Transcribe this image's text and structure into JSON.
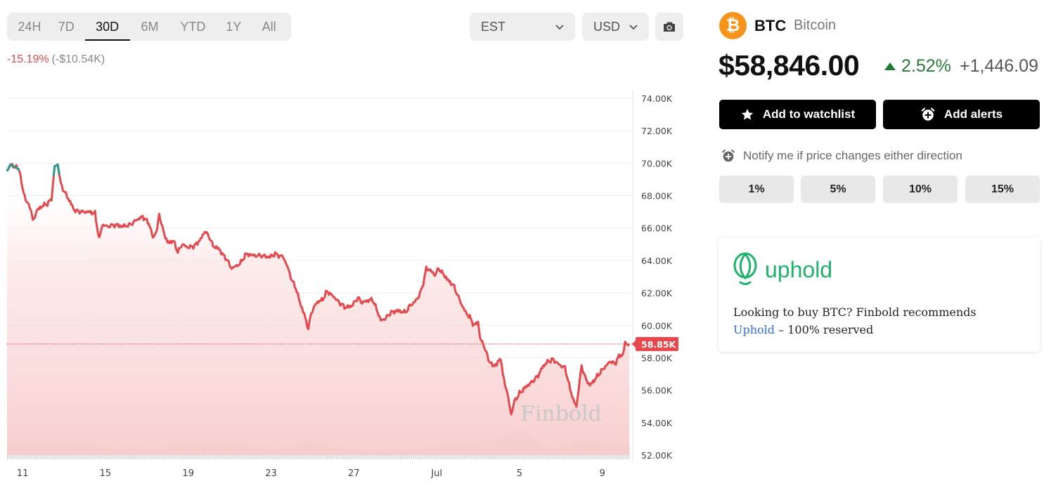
{
  "periods": [
    "24H",
    "7D",
    "30D",
    "6M",
    "YTD",
    "1Y",
    "All"
  ],
  "active_period": "30D",
  "timezone": "EST",
  "currency": "USD",
  "change_pct": "-15.19%",
  "change_abs": "(-$10.54K)",
  "coin": {
    "symbol": "BTC",
    "name": "Bitcoin",
    "logo_glyph": "₿"
  },
  "price": "$58,846.00",
  "price_change_pct": "2.52%",
  "price_change_abs": "+1,446.09",
  "actions": {
    "watchlist": "Add to watchlist",
    "alerts": "Add alerts"
  },
  "notify_text": "Notify me if price changes either direction",
  "alert_options": [
    "1%",
    "5%",
    "10%",
    "15%"
  ],
  "promo": {
    "brand": "uphold",
    "line1": "Looking to buy BTC? Finbold recommends",
    "link": "Uphold",
    "line2_rest": "– 100% reserved"
  },
  "colors": {
    "down": "#e5484d",
    "up": "#2a9d8f",
    "positive": "#2a7a3c",
    "brand": "#f7931a",
    "uphold": "#1fb26a"
  },
  "chart_data": {
    "type": "line",
    "watermark": "Finbold",
    "current_price_label": "58.85K",
    "current_price": 58846,
    "ylim": [
      52000,
      74000
    ],
    "y_ticks": [
      "74.00K",
      "72.00K",
      "70.00K",
      "68.00K",
      "66.00K",
      "64.00K",
      "62.00K",
      "60.00K",
      "58.00K",
      "56.00K",
      "54.00K",
      "52.00K"
    ],
    "x_ticks": [
      {
        "label": "11",
        "day": 11
      },
      {
        "label": "15",
        "day": 15
      },
      {
        "label": "19",
        "day": 19
      },
      {
        "label": "23",
        "day": 23
      },
      {
        "label": "27",
        "day": 27
      },
      {
        "label": "Jul",
        "day": 31
      },
      {
        "label": "5",
        "day": 35
      },
      {
        "label": "9",
        "day": 39
      }
    ],
    "xlim": [
      10.25,
      40.3
    ],
    "series": [
      {
        "points": [
          [
            10.25,
            69500
          ],
          [
            10.4,
            69900
          ],
          [
            10.6,
            69800
          ],
          [
            10.85,
            69600
          ],
          [
            11.0,
            68400
          ],
          [
            11.2,
            67600
          ],
          [
            11.4,
            67200
          ],
          [
            11.5,
            66400
          ],
          [
            11.7,
            67100
          ],
          [
            12.0,
            67400
          ],
          [
            12.2,
            67500
          ],
          [
            12.4,
            67800
          ],
          [
            12.55,
            69800
          ],
          [
            12.7,
            69900
          ],
          [
            12.85,
            68700
          ],
          [
            13.0,
            68300
          ],
          [
            13.3,
            67600
          ],
          [
            13.5,
            67100
          ],
          [
            13.8,
            67000
          ],
          [
            14.2,
            67000
          ],
          [
            14.5,
            66900
          ],
          [
            14.7,
            65300
          ],
          [
            14.85,
            66200
          ],
          [
            15.1,
            66100
          ],
          [
            15.5,
            66200
          ],
          [
            15.8,
            66100
          ],
          [
            16.2,
            66200
          ],
          [
            16.5,
            66500
          ],
          [
            16.8,
            66700
          ],
          [
            17.1,
            66300
          ],
          [
            17.3,
            65400
          ],
          [
            17.5,
            65900
          ],
          [
            17.6,
            66900
          ],
          [
            17.75,
            66000
          ],
          [
            18.0,
            65100
          ],
          [
            18.3,
            65200
          ],
          [
            18.5,
            64500
          ],
          [
            18.7,
            65000
          ],
          [
            19.0,
            64800
          ],
          [
            19.3,
            64900
          ],
          [
            19.6,
            65300
          ],
          [
            19.8,
            65800
          ],
          [
            20.0,
            65500
          ],
          [
            20.2,
            64900
          ],
          [
            20.5,
            64700
          ],
          [
            20.7,
            64300
          ],
          [
            20.85,
            64100
          ],
          [
            21.1,
            63500
          ],
          [
            21.5,
            63800
          ],
          [
            21.8,
            64400
          ],
          [
            22.2,
            64300
          ],
          [
            22.6,
            64300
          ],
          [
            22.9,
            64200
          ],
          [
            23.2,
            64400
          ],
          [
            23.6,
            64200
          ],
          [
            23.8,
            63600
          ],
          [
            24.0,
            62800
          ],
          [
            24.2,
            62300
          ],
          [
            24.4,
            61400
          ],
          [
            24.6,
            60700
          ],
          [
            24.8,
            59800
          ],
          [
            24.95,
            60800
          ],
          [
            25.2,
            61400
          ],
          [
            25.5,
            61600
          ],
          [
            25.7,
            62100
          ],
          [
            26.0,
            61800
          ],
          [
            26.3,
            61400
          ],
          [
            26.6,
            61100
          ],
          [
            26.9,
            61200
          ],
          [
            27.2,
            61700
          ],
          [
            27.4,
            61400
          ],
          [
            27.6,
            61500
          ],
          [
            27.9,
            61600
          ],
          [
            28.1,
            61000
          ],
          [
            28.3,
            60300
          ],
          [
            28.5,
            60400
          ],
          [
            28.8,
            60800
          ],
          [
            29.1,
            60900
          ],
          [
            29.5,
            60800
          ],
          [
            29.7,
            61200
          ],
          [
            29.9,
            61400
          ],
          [
            30.1,
            61700
          ],
          [
            30.3,
            62300
          ],
          [
            30.5,
            63500
          ],
          [
            30.7,
            63400
          ],
          [
            30.9,
            63100
          ],
          [
            31.1,
            63500
          ],
          [
            31.3,
            63200
          ],
          [
            31.6,
            62700
          ],
          [
            31.8,
            62500
          ],
          [
            32.0,
            61900
          ],
          [
            32.2,
            61300
          ],
          [
            32.4,
            60800
          ],
          [
            32.6,
            60500
          ],
          [
            32.8,
            60000
          ],
          [
            33.0,
            60200
          ],
          [
            33.1,
            59200
          ],
          [
            33.3,
            58700
          ],
          [
            33.5,
            57900
          ],
          [
            33.7,
            57500
          ],
          [
            33.9,
            57600
          ],
          [
            34.1,
            58000
          ],
          [
            34.2,
            56900
          ],
          [
            34.4,
            55900
          ],
          [
            34.6,
            54500
          ],
          [
            34.75,
            55300
          ],
          [
            35.0,
            55800
          ],
          [
            35.3,
            56200
          ],
          [
            35.6,
            56500
          ],
          [
            35.9,
            56900
          ],
          [
            36.1,
            57400
          ],
          [
            36.3,
            57700
          ],
          [
            36.6,
            57900
          ],
          [
            36.8,
            57700
          ],
          [
            37.0,
            57500
          ],
          [
            37.2,
            57400
          ],
          [
            37.4,
            56300
          ],
          [
            37.6,
            55400
          ],
          [
            37.75,
            55000
          ],
          [
            37.9,
            56500
          ],
          [
            38.0,
            57500
          ],
          [
            38.2,
            56700
          ],
          [
            38.4,
            56300
          ],
          [
            38.6,
            56600
          ],
          [
            38.9,
            57100
          ],
          [
            39.1,
            57400
          ],
          [
            39.4,
            57800
          ],
          [
            39.6,
            57600
          ],
          [
            39.8,
            58100
          ],
          [
            40.0,
            58200
          ],
          [
            40.1,
            58900
          ],
          [
            40.3,
            58846
          ]
        ],
        "green_segments": [
          [
            [
              10.25,
              69500
            ],
            [
              10.4,
              69900
            ],
            [
              10.6,
              69800
            ],
            [
              10.85,
              69600
            ]
          ],
          [
            [
              12.5,
              69200
            ],
            [
              12.55,
              69800
            ],
            [
              12.7,
              69900
            ],
            [
              12.78,
              69300
            ]
          ]
        ]
      }
    ],
    "volume_profile": [
      [
        10.25,
        0.45
      ],
      [
        11.5,
        0.5
      ],
      [
        12.0,
        0.55
      ],
      [
        13.0,
        0.5
      ],
      [
        14.5,
        0.45
      ],
      [
        15.5,
        0.3
      ],
      [
        16.5,
        0.35
      ],
      [
        17.5,
        0.3
      ],
      [
        18.5,
        0.5
      ],
      [
        19.0,
        0.55
      ],
      [
        20.0,
        0.4
      ],
      [
        21.0,
        0.45
      ],
      [
        22.0,
        0.38
      ],
      [
        23.0,
        0.3
      ],
      [
        24.0,
        0.38
      ],
      [
        24.6,
        0.6
      ],
      [
        25.2,
        0.55
      ],
      [
        26.0,
        0.35
      ],
      [
        27.0,
        0.3
      ],
      [
        28.0,
        0.22
      ],
      [
        29.0,
        0.25
      ],
      [
        30.0,
        0.3
      ],
      [
        31.0,
        0.4
      ],
      [
        32.0,
        0.45
      ],
      [
        33.0,
        0.55
      ],
      [
        34.0,
        0.65
      ],
      [
        34.6,
        0.85
      ],
      [
        35.2,
        0.95
      ],
      [
        35.6,
        0.7
      ],
      [
        36.0,
        0.45
      ],
      [
        36.8,
        0.35
      ],
      [
        37.4,
        0.5
      ],
      [
        37.8,
        0.6
      ],
      [
        38.4,
        0.65
      ],
      [
        38.9,
        0.55
      ],
      [
        39.5,
        0.45
      ],
      [
        40.3,
        0.45
      ]
    ]
  }
}
